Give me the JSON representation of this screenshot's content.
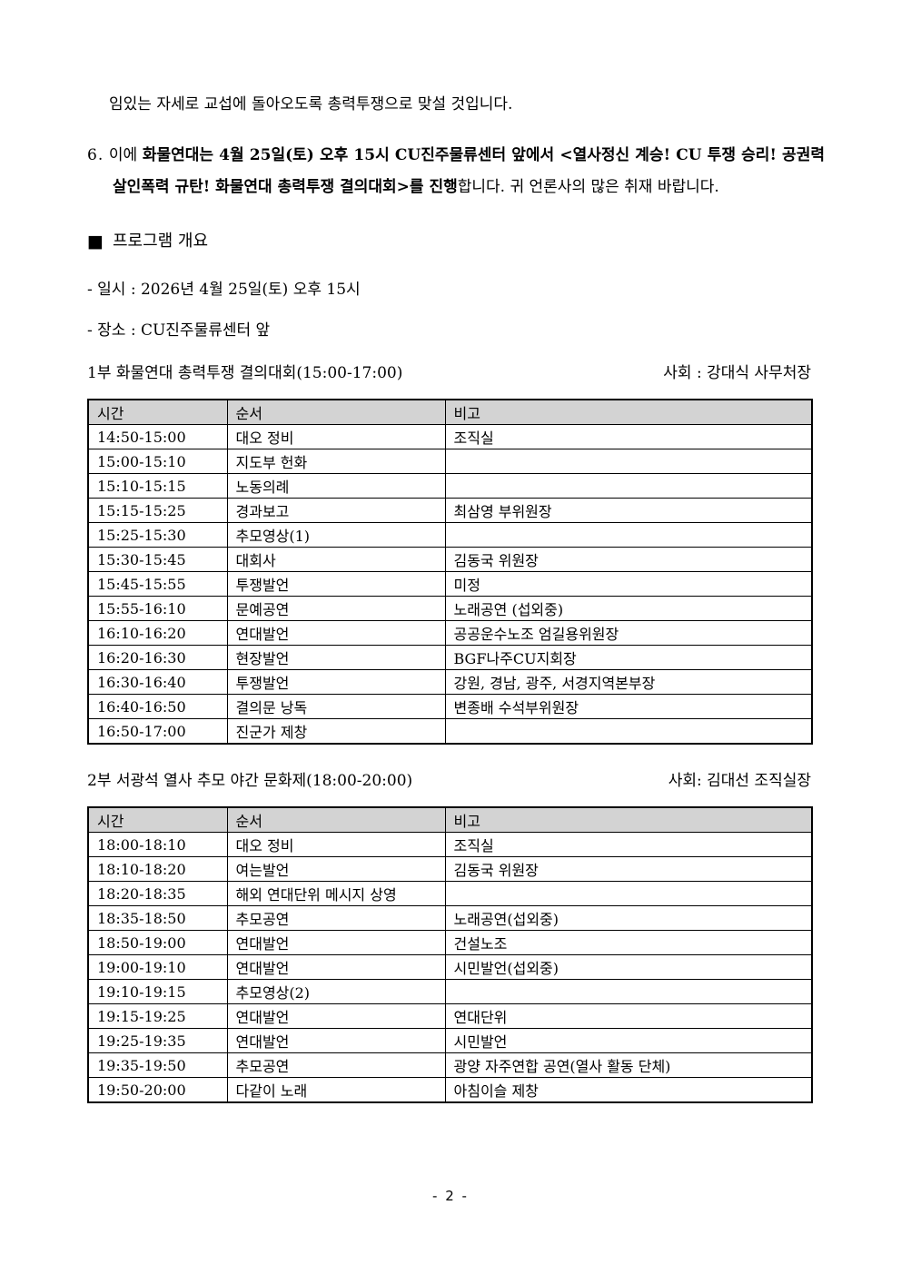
{
  "document": {
    "intro_line": "임있는 자세로 교섭에 돌아오도록 총력투쟁으로 맞설 것입니다.",
    "item6": {
      "number": "6.",
      "prefix": " 이에 ",
      "bold": "화물연대는 4월 25일(토) 오후 15시 CU진주물류센터 앞에서 <열사정신 계승! CU 투쟁 승리! 공권력 살인폭력 규탄! 화물연대 총력투쟁 결의대회>를 진행",
      "suffix": "합니다. 귀 언론사의 많은 취재 바랍니다."
    },
    "program": {
      "marker": "■",
      "title": "프로그램 개요"
    },
    "info": {
      "date": "- 일시 : 2026년 4월 25일(토) 오후 15시",
      "place": "- 장소 : CU진주물류센터 앞"
    },
    "part1": {
      "title": "1부 화물연대 총력투쟁 결의대회(15:00-17:00)",
      "host": "사회 : 강대식 사무처장",
      "table": {
        "headers": [
          "시간",
          "순서",
          "비고"
        ],
        "rows": [
          [
            "14:50-15:00",
            "대오 정비",
            "조직실"
          ],
          [
            "15:00-15:10",
            "지도부 헌화",
            ""
          ],
          [
            "15:10-15:15",
            "노동의례",
            ""
          ],
          [
            "15:15-15:25",
            "경과보고",
            "최삼영 부위원장"
          ],
          [
            "15:25-15:30",
            "추모영상(1)",
            ""
          ],
          [
            "15:30-15:45",
            "대회사",
            "김동국 위원장"
          ],
          [
            "15:45-15:55",
            "투쟁발언",
            "미정"
          ],
          [
            "15:55-16:10",
            "문예공연",
            "노래공연 (섭외중)"
          ],
          [
            "16:10-16:20",
            "연대발언",
            "공공운수노조 엄길용위원장"
          ],
          [
            "16:20-16:30",
            "현장발언",
            "BGF나주CU지회장"
          ],
          [
            "16:30-16:40",
            "투쟁발언",
            "강원, 경남, 광주, 서경지역본부장"
          ],
          [
            "16:40-16:50",
            "결의문 낭독",
            "변종배 수석부위원장"
          ],
          [
            "16:50-17:00",
            "진군가 제창",
            ""
          ]
        ]
      }
    },
    "part2": {
      "title": "2부 서광석 열사 추모 야간 문화제(18:00-20:00)",
      "host": "사회: 김대선 조직실장",
      "table": {
        "headers": [
          "시간",
          "순서",
          "비고"
        ],
        "rows": [
          [
            "18:00-18:10",
            "대오 정비",
            "조직실"
          ],
          [
            "18:10-18:20",
            "여는발언",
            "김동국 위원장"
          ],
          [
            "18:20-18:35",
            "해외 연대단위 메시지 상영",
            ""
          ],
          [
            "18:35-18:50",
            "추모공연",
            "노래공연(섭외중)"
          ],
          [
            "18:50-19:00",
            "연대발언",
            "건설노조"
          ],
          [
            "19:00-19:10",
            "연대발언",
            "시민발언(섭외중)"
          ],
          [
            "19:10-19:15",
            "추모영상(2)",
            ""
          ],
          [
            "19:15-19:25",
            "연대발언",
            "연대단위"
          ],
          [
            "19:25-19:35",
            "연대발언",
            "시민발언"
          ],
          [
            "19:35-19:50",
            "추모공연",
            "광양 자주연합 공연(열사 활동 단체)"
          ],
          [
            "19:50-20:00",
            "다같이 노래",
            "아침이슬 제창"
          ]
        ]
      }
    },
    "footer_page_number": "- 2 -",
    "colors": {
      "table_header_bg": "#d3d3d3",
      "border": "#000000",
      "text": "#000000",
      "page_bg": "#ffffff"
    }
  }
}
